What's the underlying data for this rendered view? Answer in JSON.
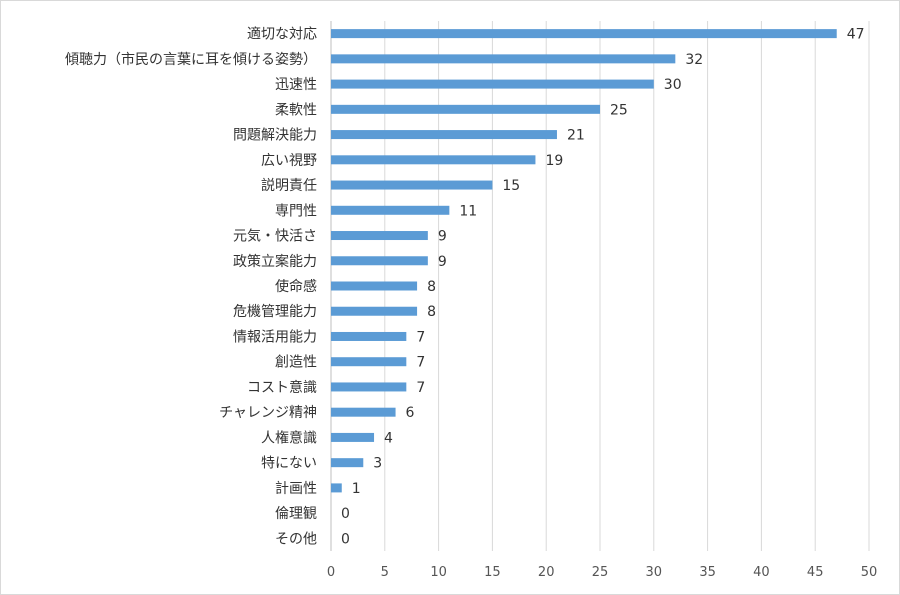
{
  "chart_data": {
    "type": "bar",
    "orientation": "horizontal",
    "categories": [
      "適切な対応",
      "傾聴力（市民の言葉に耳を傾ける姿勢）",
      "迅速性",
      "柔軟性",
      "問題解決能力",
      "広い視野",
      "説明責任",
      "専門性",
      "元気・快活さ",
      "政策立案能力",
      "使命感",
      "危機管理能力",
      "情報活用能力",
      "創造性",
      "コスト意識",
      "チャレンジ精神",
      "人権意識",
      "特にない",
      "計画性",
      "倫理観",
      "その他"
    ],
    "values": [
      47,
      32,
      30,
      25,
      21,
      19,
      15,
      11,
      9,
      9,
      8,
      8,
      7,
      7,
      7,
      6,
      4,
      3,
      1,
      0,
      0
    ],
    "xlim": [
      0,
      50
    ],
    "x_ticks": [
      0,
      5,
      10,
      15,
      20,
      25,
      30,
      35,
      40,
      45,
      50
    ],
    "title": "",
    "xlabel": "",
    "ylabel": "",
    "grid": "vertical",
    "legend": "none",
    "data_labels": true,
    "bar_color": "#5b9bd5"
  }
}
